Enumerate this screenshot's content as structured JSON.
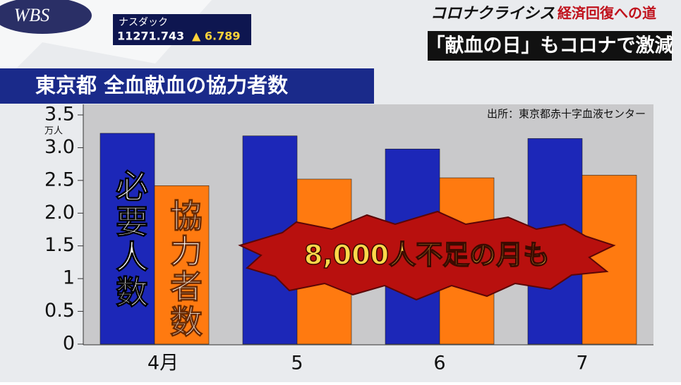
{
  "overlay": {
    "logo": "WBS",
    "ticker_name": "ナスダック",
    "ticker_value": "11271.743",
    "ticker_change": "▲ 6.789",
    "series_title": "コロナクライシス",
    "series_subtitle": "経済回復への道",
    "headline": "「献血の日」もコロナで激減"
  },
  "chart_data": {
    "type": "bar",
    "title": "東京都 全血献血の協力者数",
    "y_unit": "万人",
    "source": "出所：東京都赤十字血液センター",
    "annotation": "8,000人不足の月も",
    "categories": [
      "4月",
      "5",
      "6",
      "7"
    ],
    "series": [
      {
        "name": "必要人数",
        "color": "#1c27b8",
        "values": [
          3.22,
          3.18,
          2.98,
          3.14
        ]
      },
      {
        "name": "協力者数",
        "color": "#ff7a10",
        "values": [
          2.42,
          2.52,
          2.54,
          2.58
        ]
      }
    ],
    "ylim": [
      0,
      3.5
    ],
    "yticks": [
      0,
      0.5,
      1,
      1.5,
      {
        "value": 2,
        "label": "2.0"
      },
      2.5,
      {
        "value": 3,
        "label": "3.0"
      },
      3.5
    ]
  }
}
